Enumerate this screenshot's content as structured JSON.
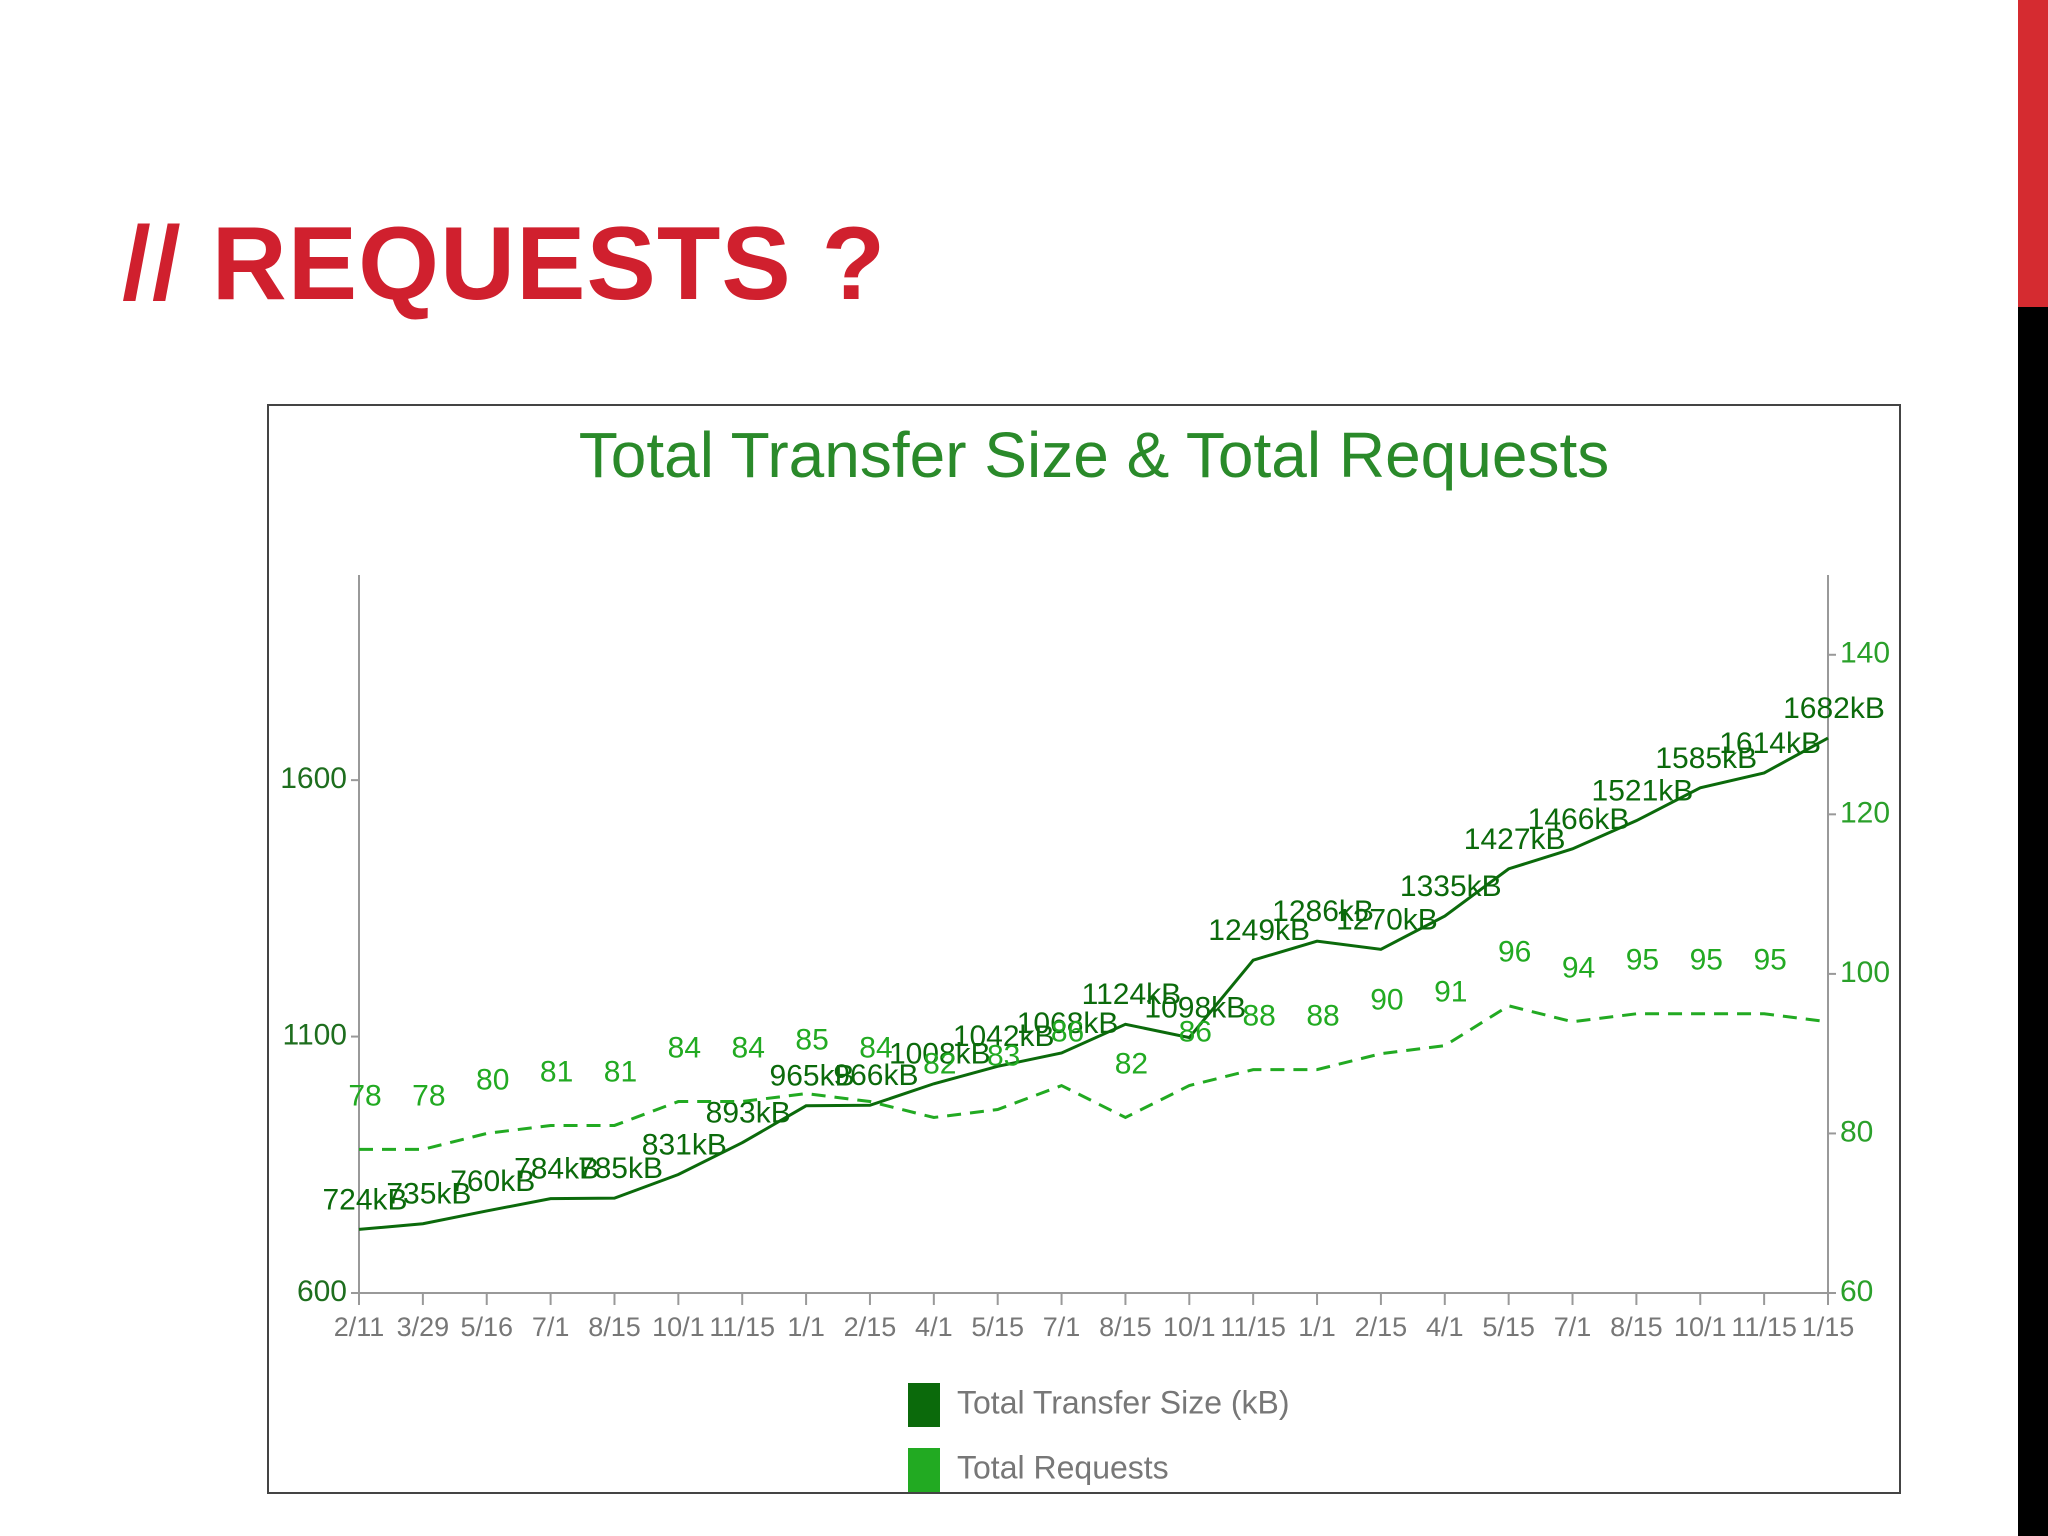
{
  "heading": "// REQUESTS ?",
  "chart_data": {
    "type": "line",
    "title": "Total Transfer Size & Total Requests",
    "categories": [
      "2/11",
      "3/29",
      "5/16",
      "7/1",
      "8/15",
      "10/1",
      "11/15",
      "1/1",
      "2/15",
      "4/1",
      "5/15",
      "7/1",
      "8/15",
      "10/1",
      "11/15",
      "1/1",
      "2/15",
      "4/1",
      "5/15",
      "7/1",
      "8/15",
      "10/1",
      "11/15",
      "1/15"
    ],
    "series": [
      {
        "name": "Total Transfer Size (kB)",
        "color": "#0b6a0b",
        "line_style": "solid",
        "values": [
          724,
          735,
          760,
          784,
          785,
          831,
          893,
          965,
          966,
          1008,
          1042,
          1068,
          1124,
          1098,
          1249,
          1286,
          1270,
          1335,
          1427,
          1466,
          1521,
          1585,
          1614,
          1682
        ],
        "value_labels": [
          "724kB",
          "735kB",
          "760kB",
          "784kB",
          "785kB",
          "831kB",
          "893kB",
          "965kB",
          "966kB",
          "1008kB",
          "1042kB",
          "1068kB",
          "1124kB",
          "1098kB",
          "1249kB",
          "1286kB",
          "1270kB",
          "1335kB",
          "1427kB",
          "1466kB",
          "1521kB",
          "1585kB",
          "1614kB",
          "1682kB"
        ]
      },
      {
        "name": "Total Requests",
        "color": "#22aa22",
        "line_style": "dashed",
        "axis": "y2",
        "values": [
          78,
          78,
          80,
          81,
          81,
          84,
          84,
          85,
          84,
          82,
          83,
          86,
          82,
          86,
          88,
          88,
          90,
          91,
          96,
          94,
          95,
          95,
          95,
          94
        ],
        "value_labels": [
          "78",
          "78",
          "80",
          "81",
          "81",
          "84",
          "84",
          "85",
          "84",
          "82",
          "83",
          "86",
          "82",
          "86",
          "88",
          "88",
          "90",
          "91",
          "96",
          "94",
          "95",
          "95",
          "95",
          null
        ]
      }
    ],
    "ylim": [
      600,
      2000
    ],
    "yticks": [
      600,
      1100,
      1600
    ],
    "y2lim": [
      60,
      150
    ],
    "y2ticks": [
      60,
      80,
      100,
      120,
      140
    ],
    "grid": false
  }
}
